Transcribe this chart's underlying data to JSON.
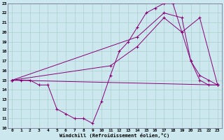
{
  "xlabel": "Windchill (Refroidissement éolien,°C)",
  "background_color": "#cce8ee",
  "grid_color": "#aacfcc",
  "line_color": "#880077",
  "xlim": [
    -0.5,
    23.5
  ],
  "ylim": [
    10,
    23
  ],
  "yticks": [
    10,
    11,
    12,
    13,
    14,
    15,
    16,
    17,
    18,
    19,
    20,
    21,
    22,
    23
  ],
  "xticks": [
    0,
    1,
    2,
    3,
    4,
    5,
    6,
    7,
    8,
    9,
    10,
    11,
    12,
    13,
    14,
    15,
    16,
    17,
    18,
    19,
    20,
    21,
    22,
    23
  ],
  "line1_x": [
    0,
    1,
    2,
    3,
    4,
    5,
    6,
    7,
    8,
    9,
    10,
    11,
    12,
    13,
    14,
    15,
    16,
    17,
    18,
    19,
    20,
    21,
    22,
    23
  ],
  "line1_y": [
    15,
    15,
    15,
    14.5,
    14.5,
    12,
    11.5,
    11,
    11,
    10.5,
    12.8,
    15.5,
    18.0,
    19.0,
    20.5,
    22.0,
    22.5,
    23.0,
    23.0,
    20.0,
    17.0,
    15.0,
    14.5,
    14.5
  ],
  "line2_x": [
    0,
    23
  ],
  "line2_y": [
    15,
    14.5
  ],
  "line3_x": [
    0,
    14,
    17,
    19,
    20,
    21,
    22,
    23
  ],
  "line3_y": [
    15,
    19.5,
    22.0,
    21.5,
    17.0,
    15.5,
    15.0,
    14.5
  ],
  "line4_x": [
    0,
    11,
    14,
    17,
    19,
    21,
    23
  ],
  "line4_y": [
    15,
    16.5,
    18.5,
    21.5,
    20.0,
    21.5,
    14.5
  ]
}
